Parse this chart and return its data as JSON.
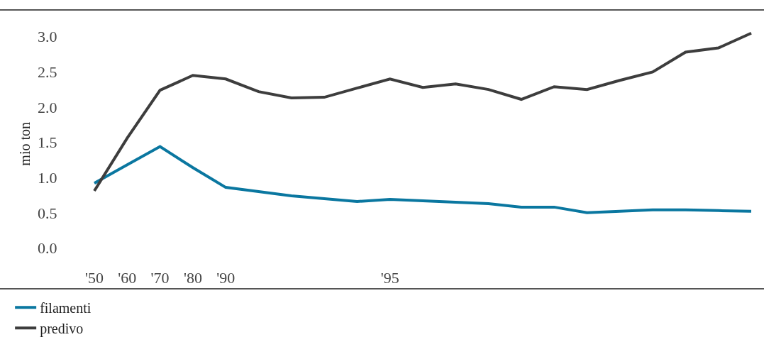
{
  "chart_data": {
    "type": "line",
    "ylabel": "mio ton",
    "categories": [
      "'50",
      "'60",
      "'70",
      "'80",
      "'90",
      null,
      null,
      null,
      null,
      "'95",
      null,
      null,
      null,
      null,
      null,
      null,
      null,
      null,
      null,
      null,
      null
    ],
    "series": [
      {
        "name": "filamenti",
        "color": "#0a77a0",
        "values": [
          0.92,
          1.18,
          1.44,
          1.14,
          0.86,
          0.8,
          0.74,
          0.7,
          0.66,
          0.69,
          0.67,
          0.65,
          0.63,
          0.58,
          0.58,
          0.5,
          0.52,
          0.54,
          0.54,
          0.53,
          0.52
        ]
      },
      {
        "name": "predivo",
        "color": "#3d3d3d",
        "values": [
          0.81,
          1.56,
          2.24,
          2.45,
          2.4,
          2.22,
          2.13,
          2.14,
          2.27,
          2.4,
          2.28,
          2.33,
          2.25,
          2.11,
          2.29,
          2.25,
          2.38,
          2.5,
          2.78,
          2.84,
          3.05
        ]
      }
    ],
    "ylim": [
      -0.57,
      3.37
    ],
    "yticks": [
      {
        "value": 0,
        "label": "0.0"
      },
      {
        "value": 0.5,
        "label": "0.5"
      },
      {
        "value": 1,
        "label": "1.0"
      },
      {
        "value": 1.5,
        "label": "1.5"
      },
      {
        "value": 2,
        "label": "2.0"
      },
      {
        "value": 2.5,
        "label": "2.5"
      },
      {
        "value": 3,
        "label": "3.0"
      }
    ],
    "legend": "bottom left",
    "marker": "none",
    "line_style": "solid"
  }
}
